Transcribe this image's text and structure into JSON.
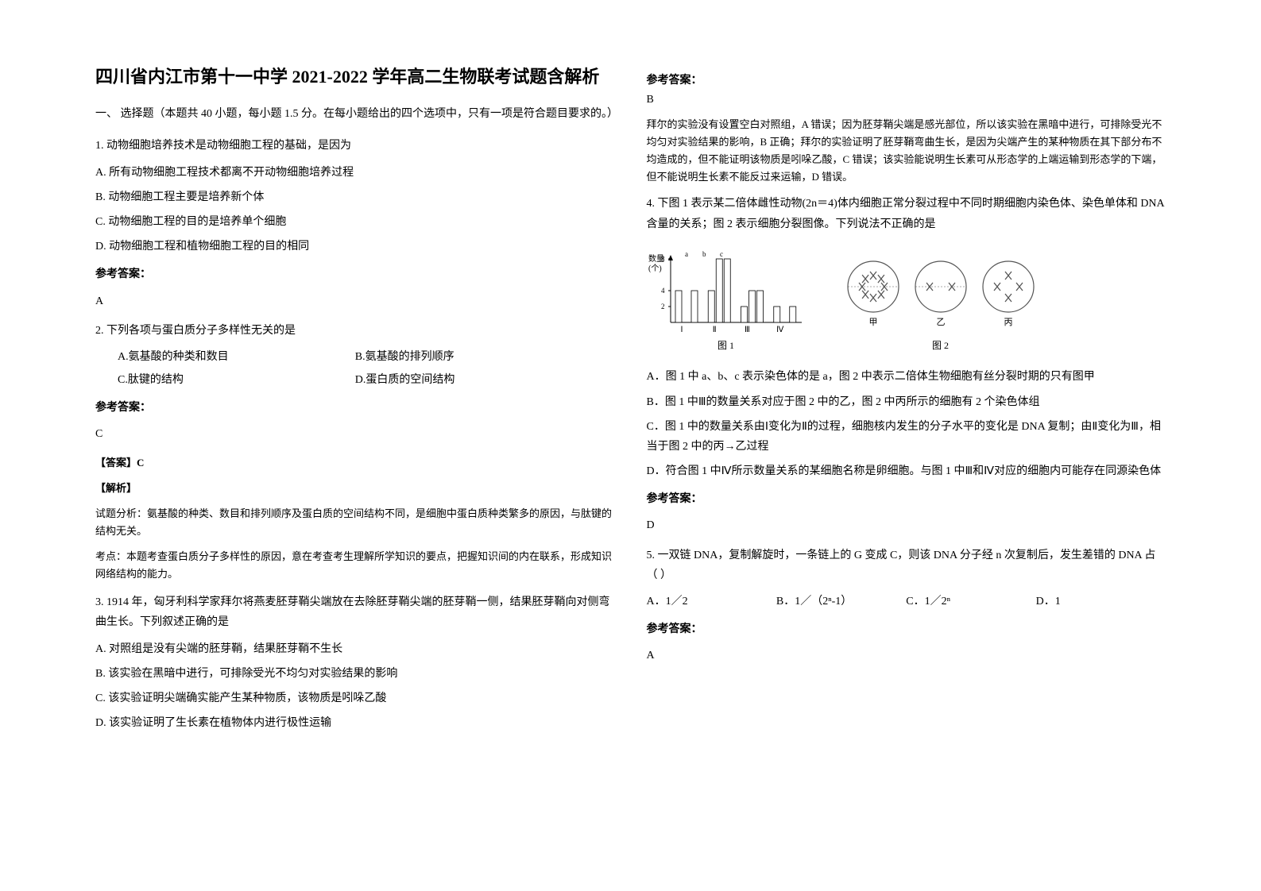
{
  "title": "四川省内江市第十一中学 2021-2022 学年高二生物联考试题含解析",
  "section1_header": "一、 选择题（本题共 40 小题，每小题 1.5 分。在每小题给出的四个选项中，只有一项是符合题目要求的。）",
  "q1": {
    "text": "1. 动物细胞培养技术是动物细胞工程的基础，是因为",
    "optA": "A. 所有动物细胞工程技术都离不开动物细胞培养过程",
    "optB": "B. 动物细胞工程主要是培养新个体",
    "optC": "C. 动物细胞工程的目的是培养单个细胞",
    "optD": "D. 动物细胞工程和植物细胞工程的目的相同",
    "answer_label": "参考答案：",
    "answer": "A"
  },
  "q2": {
    "text": "2. 下列各项与蛋白质分子多样性无关的是",
    "optA": "A.氨基酸的种类和数目",
    "optB": "B.氨基酸的排列顺序",
    "optC": "C.肽键的结构",
    "optD": "D.蛋白质的空间结构",
    "answer_label": "参考答案：",
    "answer": "C",
    "tag_answer": "【答案】C",
    "tag_explain": "【解析】",
    "explain1": "试题分析：氨基酸的种类、数目和排列顺序及蛋白质的空间结构不同，是细胞中蛋白质种类繁多的原因，与肽键的结构无关。",
    "explain2": "考点：本题考查蛋白质分子多样性的原因，意在考查考生理解所学知识的要点，把握知识间的内在联系，形成知识网络结构的能力。"
  },
  "q3": {
    "text": "3. 1914 年，匈牙利科学家拜尔将燕麦胚芽鞘尖端放在去除胚芽鞘尖端的胚芽鞘一侧，结果胚芽鞘向对侧弯曲生长。下列叙述正确的是",
    "optA": "A.  对照组是没有尖端的胚芽鞘，结果胚芽鞘不生长",
    "optB": "B.  该实验在黑暗中进行，可排除受光不均匀对实验结果的影响",
    "optC": "C.  该实验证明尖端确实能产生某种物质，该物质是吲哚乙酸",
    "optD": "D.  该实验证明了生长素在植物体内进行极性运输",
    "answer_label": "参考答案：",
    "answer": "B",
    "explain": "拜尔的实验没有设置空白对照组，A 错误；因为胚芽鞘尖端是感光部位，所以该实验在黑暗中进行，可排除受光不均匀对实验结果的影响，B 正确；拜尔的实验证明了胚芽鞘弯曲生长，是因为尖端产生的某种物质在其下部分布不均造成的，但不能证明该物质是吲哚乙酸，C 错误；该实验能说明生长素可从形态学的上端运输到形态学的下端，但不能说明生长素不能反过来运输，D 错误。"
  },
  "q4": {
    "text": "4. 下图 1 表示某二倍体雌性动物(2n＝4)体内细胞正常分裂过程中不同时期细胞内染色体、染色单体和 DNA 含量的关系；图 2 表示细胞分裂图像。下列说法不正确的是",
    "fig1_label": "图 1",
    "fig2_label": "图 2",
    "optA": "A．图 1 中 a、b、c 表示染色体的是 a，图 2 中表示二倍体生物细胞有丝分裂时期的只有图甲",
    "optB": "B．图 1 中Ⅲ的数量关系对应于图 2 中的乙，图 2 中丙所示的细胞有 2 个染色体组",
    "optC": "C．图 1 中的数量关系由Ⅰ变化为Ⅱ的过程，细胞核内发生的分子水平的变化是 DNA 复制；由Ⅱ变化为Ⅲ，相当于图 2 中的丙→乙过程",
    "optD": "D．符合图 1 中Ⅳ所示数量关系的某细胞名称是卵细胞。与图 1 中Ⅲ和Ⅳ对应的细胞内可能存在同源染色体",
    "answer_label": "参考答案：",
    "answer": "D"
  },
  "q5": {
    "text": "5. 一双链 DNA，复制解旋时，一条链上的 G 变成 C，则该 DNA 分子经 n 次复制后，发生差错的 DNA 占（     ）",
    "optA": "A．1／2",
    "optB": "B．1／（2ⁿ-1）",
    "optC": "C．1／2ⁿ",
    "optD": "D．1",
    "answer_label": "参考答案：",
    "answer": "A"
  },
  "chart": {
    "y_label": "数量(个)",
    "y_ticks": [
      "2",
      "4",
      "8"
    ],
    "x_labels": [
      "Ⅰ",
      "Ⅱ",
      "Ⅲ",
      "Ⅳ"
    ],
    "bar_groups": [
      {
        "a": 4,
        "b": 0,
        "c": 4
      },
      {
        "a": 4,
        "b": 8,
        "c": 8
      },
      {
        "a": 2,
        "b": 4,
        "c": 4
      },
      {
        "a": 2,
        "b": 0,
        "c": 2
      }
    ],
    "cell_labels": [
      "甲",
      "乙",
      "丙"
    ],
    "colors": {
      "axis": "#000000",
      "bar_fill": "#ffffff",
      "bar_stroke": "#000000",
      "cell_stroke": "#555555"
    }
  }
}
